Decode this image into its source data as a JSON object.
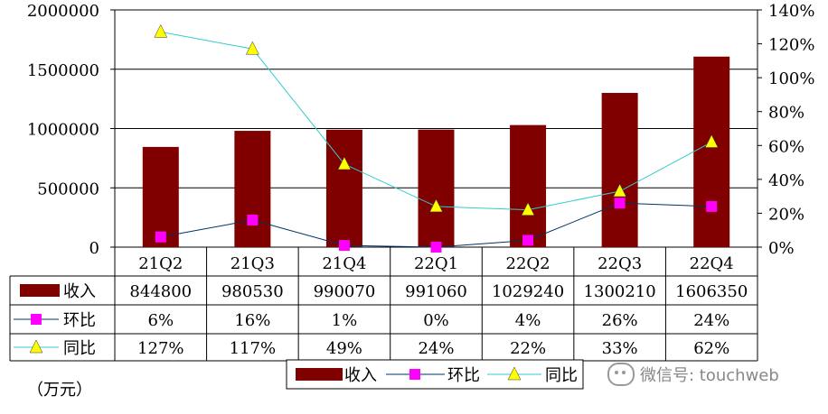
{
  "chart_data": {
    "type": "bar",
    "categories": [
      "21Q2",
      "21Q3",
      "21Q4",
      "22Q1",
      "22Q2",
      "22Q3",
      "22Q4"
    ],
    "series": [
      {
        "name": "收入",
        "kind": "bar",
        "axis": "left",
        "color": "#800000",
        "values": [
          844800,
          980530,
          990070,
          991060,
          1029240,
          1300210,
          1606350
        ],
        "labels": [
          "844800",
          "980530",
          "990070",
          "991060",
          "1029240",
          "1300210",
          "1606350"
        ]
      },
      {
        "name": "环比",
        "kind": "line",
        "axis": "right",
        "color": "#003366",
        "marker": "square",
        "marker_color": "#FF00FF",
        "values": [
          6,
          16,
          1,
          0,
          4,
          26,
          24
        ],
        "labels": [
          "6%",
          "16%",
          "1%",
          "0%",
          "4%",
          "26%",
          "24%"
        ]
      },
      {
        "name": "同比",
        "kind": "line",
        "axis": "right",
        "color": "#33CCCC",
        "marker": "triangle",
        "marker_color": "#FFFF00",
        "values": [
          127,
          117,
          49,
          24,
          22,
          33,
          62
        ],
        "labels": [
          "127%",
          "117%",
          "49%",
          "24%",
          "22%",
          "33%",
          "62%"
        ]
      }
    ],
    "left_axis": {
      "ylim": [
        0,
        2000000
      ],
      "ticks": [
        "0",
        "500000",
        "1000000",
        "1500000",
        "2000000"
      ]
    },
    "right_axis": {
      "ylim": [
        0,
        140
      ],
      "ticks": [
        "0%",
        "20%",
        "40%",
        "60%",
        "80%",
        "100%",
        "120%",
        "140%"
      ]
    },
    "grid": true,
    "legend": "bottom"
  },
  "unit_label": "（万元）",
  "watermark": "微信号: touchweb"
}
